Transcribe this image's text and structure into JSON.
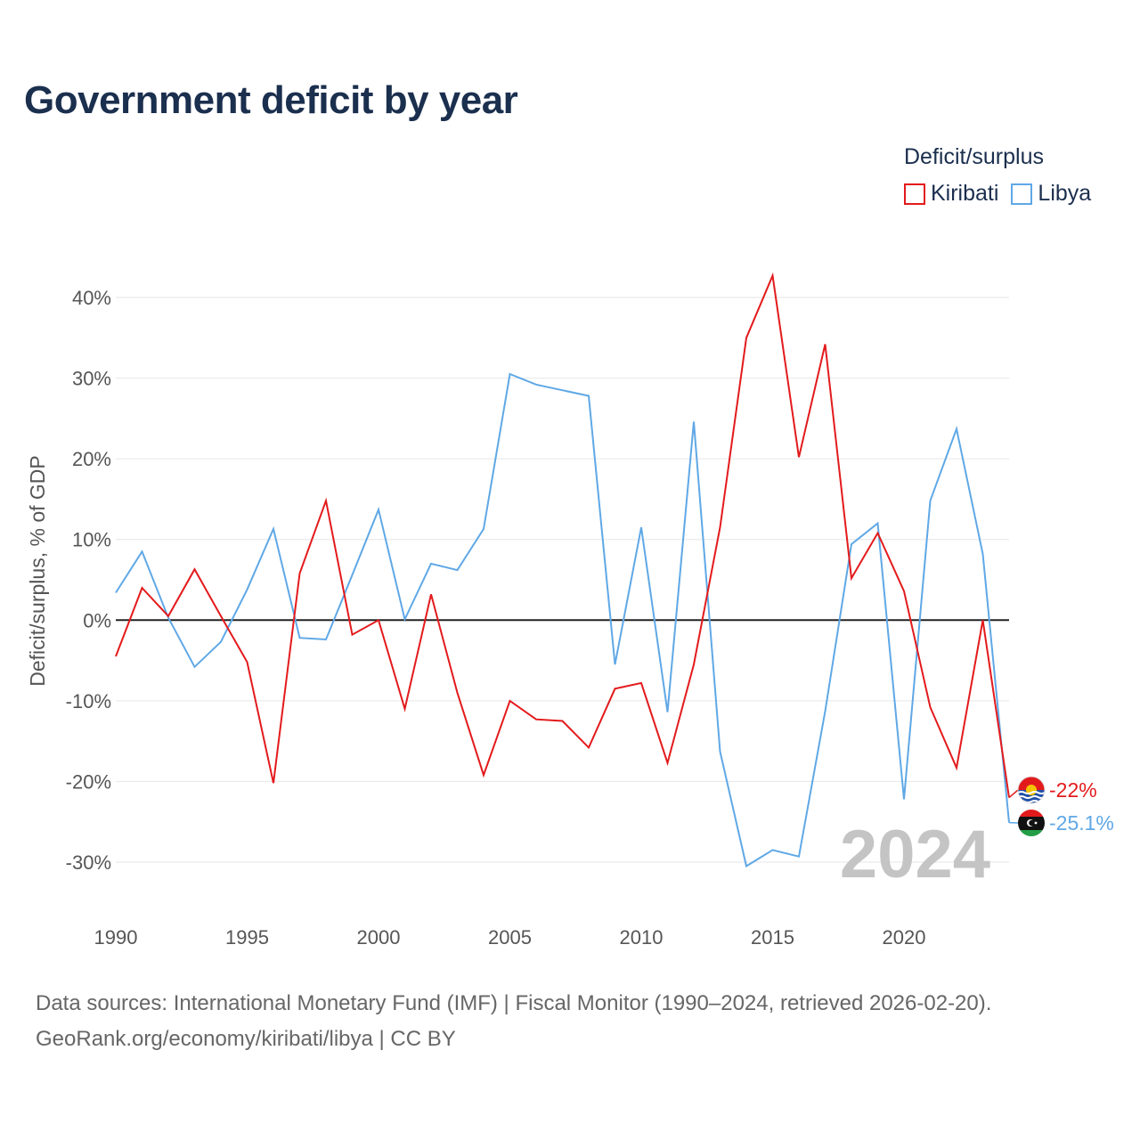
{
  "title": "Government deficit by year",
  "legend": {
    "title": "Deficit/surplus",
    "items": [
      {
        "label": "Kiribati",
        "color": "#e31a1c"
      },
      {
        "label": "Libya",
        "color": "#5fa8e6"
      }
    ]
  },
  "year_watermark": "2024",
  "footer": {
    "line1": "Data sources: International Monetary Fund (IMF) | Fiscal Monitor (1990–2024, retrieved 2026-02-20).",
    "line2": "GeoRank.org/economy/kiribati/libya | CC BY"
  },
  "chart_data": {
    "type": "line",
    "title": "Government deficit by year",
    "xlabel": "",
    "ylabel": "Deficit/surplus, % of GDP",
    "x": [
      1990,
      1991,
      1992,
      1993,
      1994,
      1995,
      1996,
      1997,
      1998,
      1999,
      2000,
      2001,
      2002,
      2003,
      2004,
      2005,
      2006,
      2007,
      2008,
      2009,
      2010,
      2011,
      2012,
      2013,
      2014,
      2015,
      2016,
      2017,
      2018,
      2019,
      2020,
      2021,
      2022,
      2023,
      2024
    ],
    "xlim": [
      1990,
      2024
    ],
    "ylim": [
      -35,
      45
    ],
    "xticks": [
      1990,
      1995,
      2000,
      2005,
      2010,
      2015,
      2020
    ],
    "xtick_labels": [
      "1990",
      "1995",
      "2000",
      "2005",
      "2010",
      "2015",
      "2020"
    ],
    "yticks": [
      -30,
      -20,
      -10,
      0,
      10,
      20,
      30,
      40
    ],
    "ytick_labels": [
      "-30%",
      "-20%",
      "-10%",
      "0%",
      "10%",
      "20%",
      "30%",
      "40%"
    ],
    "grid": true,
    "legend_position": "top-right",
    "series": [
      {
        "name": "Kiribati",
        "color": "#e31a1c",
        "values": [
          -4.5,
          4.0,
          0.5,
          6.3,
          0.5,
          -5.2,
          -20.2,
          5.8,
          14.8,
          -1.8,
          0.0,
          -11.0,
          3.2,
          -9.0,
          -19.2,
          -10.0,
          -12.3,
          -12.5,
          -15.8,
          -8.5,
          -7.8,
          -17.7,
          -5.5,
          11.5,
          35.0,
          42.7,
          20.2,
          34.2,
          5.2,
          10.8,
          3.6,
          -10.8,
          -18.3,
          0.0,
          -22.0
        ],
        "end_label": "-22%"
      },
      {
        "name": "Libya",
        "color": "#5fa8e6",
        "values": [
          3.4,
          8.5,
          0.3,
          -5.8,
          -2.7,
          3.8,
          11.3,
          -2.2,
          -2.4,
          5.6,
          13.7,
          0.1,
          7.0,
          6.2,
          11.3,
          30.5,
          29.2,
          28.5,
          27.8,
          -5.5,
          11.5,
          -11.4,
          24.6,
          -16.3,
          -30.5,
          -28.5,
          -29.3,
          -11.3,
          9.4,
          12.0,
          -22.2,
          14.8,
          23.7,
          8.2,
          -25.1
        ],
        "end_label": "-25.1%"
      }
    ]
  }
}
